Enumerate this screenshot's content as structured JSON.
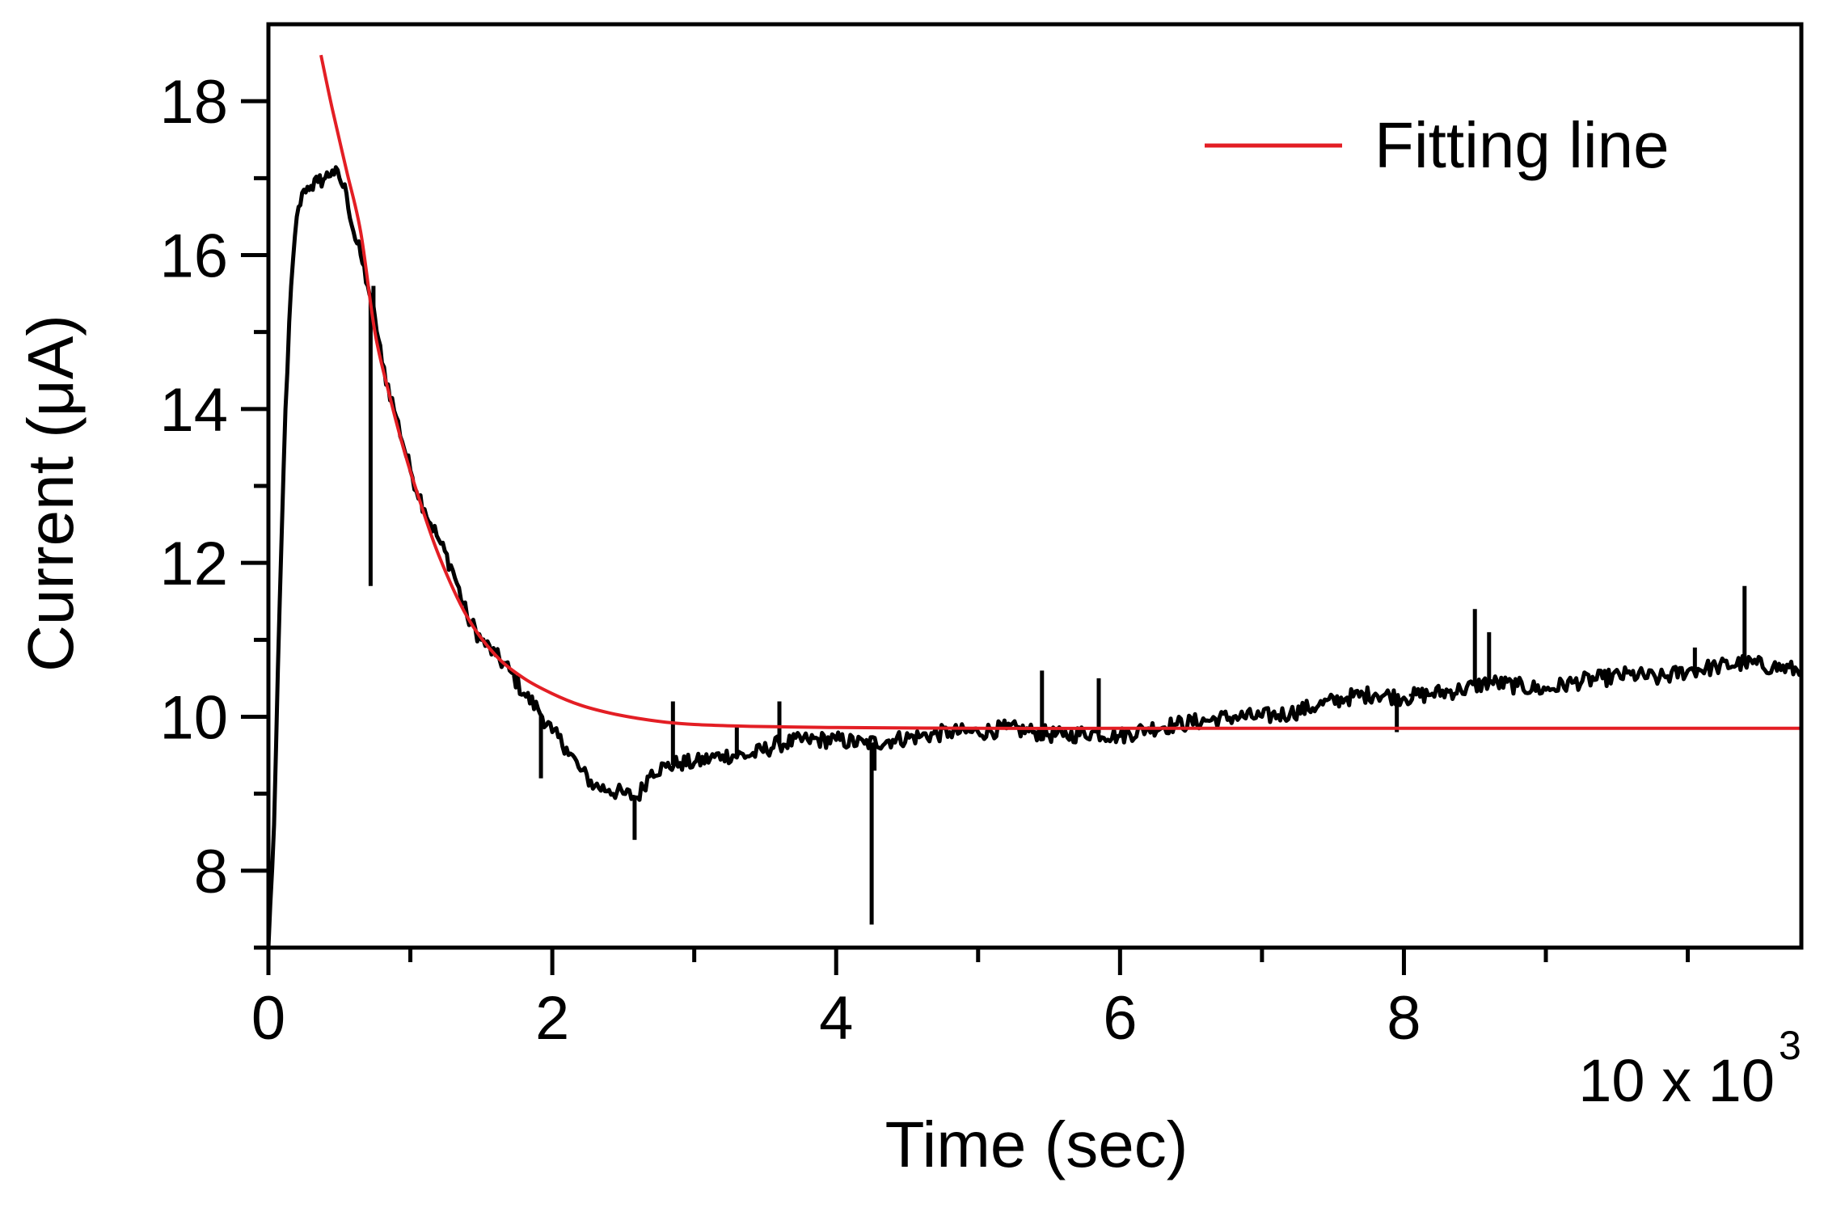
{
  "chart_data": {
    "type": "line",
    "xlabel": "Time (sec)",
    "ylabel": "Current (μA)",
    "x_multiplier": {
      "base": "10 x 10",
      "exponent": "3"
    },
    "xlim": [
      0,
      10.8
    ],
    "ylim": [
      7,
      19
    ],
    "x_ticks": [
      {
        "value": 0,
        "label": "0"
      },
      {
        "value": 2,
        "label": "2"
      },
      {
        "value": 4,
        "label": "4"
      },
      {
        "value": 6,
        "label": "6"
      },
      {
        "value": 8,
        "label": "8"
      }
    ],
    "x_minor_ticks": [
      1,
      3,
      5,
      7,
      9,
      10
    ],
    "y_ticks": [
      {
        "value": 8,
        "label": "8"
      },
      {
        "value": 10,
        "label": "10"
      },
      {
        "value": 12,
        "label": "12"
      },
      {
        "value": 14,
        "label": "14"
      },
      {
        "value": 16,
        "label": "16"
      },
      {
        "value": 18,
        "label": "18"
      }
    ],
    "y_minor_ticks": [
      7,
      9,
      11,
      13,
      15,
      17
    ],
    "grid": false,
    "legend_position": "top-right",
    "series": [
      {
        "key": "measured",
        "color": "#000000",
        "points": [
          [
            0.0,
            7.0
          ],
          [
            0.04,
            8.6
          ],
          [
            0.08,
            11.5
          ],
          [
            0.12,
            14.0
          ],
          [
            0.16,
            15.6
          ],
          [
            0.2,
            16.5
          ],
          [
            0.25,
            16.85
          ],
          [
            0.3,
            16.9
          ],
          [
            0.35,
            16.95
          ],
          [
            0.4,
            17.0
          ],
          [
            0.45,
            17.1
          ],
          [
            0.5,
            17.0
          ],
          [
            0.55,
            16.8
          ],
          [
            0.6,
            16.3
          ],
          [
            0.65,
            16.0
          ],
          [
            0.7,
            15.6
          ],
          [
            0.75,
            15.2
          ],
          [
            0.8,
            14.6
          ],
          [
            0.9,
            13.9
          ],
          [
            1.0,
            13.2
          ],
          [
            1.1,
            12.7
          ],
          [
            1.2,
            12.3
          ],
          [
            1.3,
            11.9
          ],
          [
            1.4,
            11.3
          ],
          [
            1.5,
            11.0
          ],
          [
            1.6,
            10.8
          ],
          [
            1.7,
            10.6
          ],
          [
            1.8,
            10.3
          ],
          [
            1.9,
            10.1
          ],
          [
            2.0,
            9.8
          ],
          [
            2.1,
            9.6
          ],
          [
            2.2,
            9.3
          ],
          [
            2.3,
            9.1
          ],
          [
            2.4,
            9.05
          ],
          [
            2.5,
            9.0
          ],
          [
            2.6,
            8.95
          ],
          [
            2.7,
            9.3
          ],
          [
            2.8,
            9.35
          ],
          [
            2.9,
            9.4
          ],
          [
            3.0,
            9.4
          ],
          [
            3.2,
            9.5
          ],
          [
            3.4,
            9.5
          ],
          [
            3.6,
            9.65
          ],
          [
            3.8,
            9.7
          ],
          [
            4.0,
            9.7
          ],
          [
            4.2,
            9.65
          ],
          [
            4.4,
            9.7
          ],
          [
            4.6,
            9.75
          ],
          [
            4.8,
            9.8
          ],
          [
            5.0,
            9.8
          ],
          [
            5.2,
            9.85
          ],
          [
            5.4,
            9.8
          ],
          [
            5.6,
            9.75
          ],
          [
            5.8,
            9.8
          ],
          [
            6.0,
            9.75
          ],
          [
            6.2,
            9.85
          ],
          [
            6.4,
            9.9
          ],
          [
            6.6,
            9.95
          ],
          [
            6.8,
            10.0
          ],
          [
            7.0,
            10.0
          ],
          [
            7.2,
            10.05
          ],
          [
            7.4,
            10.15
          ],
          [
            7.6,
            10.25
          ],
          [
            7.8,
            10.3
          ],
          [
            8.0,
            10.25
          ],
          [
            8.2,
            10.3
          ],
          [
            8.4,
            10.35
          ],
          [
            8.6,
            10.45
          ],
          [
            8.8,
            10.4
          ],
          [
            9.0,
            10.35
          ],
          [
            9.2,
            10.45
          ],
          [
            9.4,
            10.5
          ],
          [
            9.6,
            10.55
          ],
          [
            9.8,
            10.5
          ],
          [
            10.0,
            10.6
          ],
          [
            10.2,
            10.65
          ],
          [
            10.4,
            10.7
          ],
          [
            10.6,
            10.65
          ],
          [
            10.8,
            10.6
          ]
        ],
        "spikes": [
          [
            0.72,
            11.7
          ],
          [
            0.74,
            15.6
          ],
          [
            1.92,
            9.2
          ],
          [
            2.58,
            8.4
          ],
          [
            2.85,
            10.2
          ],
          [
            3.3,
            9.9
          ],
          [
            3.6,
            10.2
          ],
          [
            4.25,
            7.3
          ],
          [
            4.27,
            9.3
          ],
          [
            5.45,
            10.6
          ],
          [
            5.85,
            10.5
          ],
          [
            7.95,
            9.8
          ],
          [
            8.05,
            10.3
          ],
          [
            8.5,
            11.4
          ],
          [
            8.6,
            11.1
          ],
          [
            10.05,
            10.9
          ],
          [
            10.4,
            11.7
          ]
        ]
      },
      {
        "key": "fit",
        "name": "Fitting line",
        "color": "#e31e24",
        "points": [
          [
            0.37,
            18.6
          ],
          [
            0.45,
            17.9
          ],
          [
            0.55,
            17.1
          ],
          [
            0.65,
            16.3
          ],
          [
            0.75,
            15.0
          ],
          [
            0.85,
            14.2
          ],
          [
            0.95,
            13.5
          ],
          [
            1.05,
            12.9
          ],
          [
            1.2,
            12.1
          ],
          [
            1.4,
            11.3
          ],
          [
            1.6,
            10.8
          ],
          [
            1.8,
            10.5
          ],
          [
            2.0,
            10.3
          ],
          [
            2.2,
            10.15
          ],
          [
            2.4,
            10.05
          ],
          [
            2.6,
            9.98
          ],
          [
            2.8,
            9.93
          ],
          [
            3.0,
            9.9
          ],
          [
            3.3,
            9.88
          ],
          [
            3.6,
            9.87
          ],
          [
            4.0,
            9.86
          ],
          [
            5.0,
            9.85
          ],
          [
            6.0,
            9.85
          ],
          [
            7.0,
            9.85
          ],
          [
            8.0,
            9.85
          ],
          [
            9.0,
            9.85
          ],
          [
            10.0,
            9.85
          ],
          [
            10.8,
            9.85
          ]
        ]
      }
    ]
  }
}
